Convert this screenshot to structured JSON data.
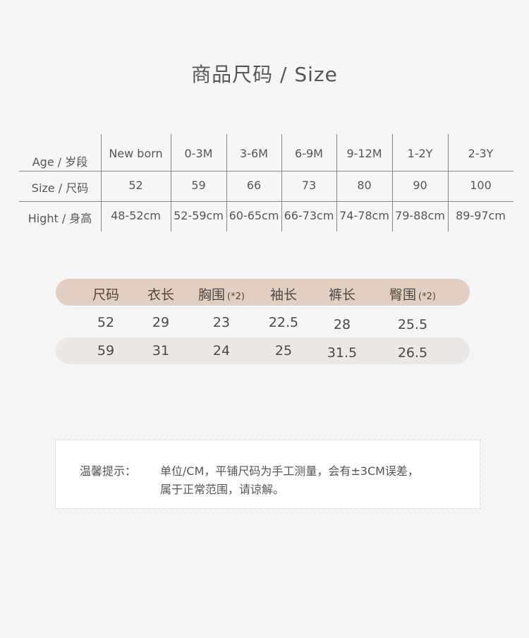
{
  "title": "商品尺码 / Size",
  "size_table": {
    "rows": [
      {
        "label": "Age / 岁段",
        "values": [
          "New born",
          "0-3M",
          "3-6M",
          "6-9M",
          "9-12M",
          "1-2Y",
          "2-3Y"
        ]
      },
      {
        "label": "Size / 尺码",
        "values": [
          "52",
          "59",
          "66",
          "73",
          "80",
          "90",
          "100"
        ]
      },
      {
        "label": "Hight / 身高",
        "values": [
          "48-52cm",
          "52-59cm",
          "60-65cm",
          "66-73cm",
          "74-78cm",
          "79-88cm",
          "89-97cm"
        ]
      }
    ]
  },
  "measure_table": {
    "headers": [
      {
        "text": "尺码",
        "note": ""
      },
      {
        "text": "衣长",
        "note": ""
      },
      {
        "text": "胸围",
        "note": "(*2)"
      },
      {
        "text": "袖长",
        "note": ""
      },
      {
        "text": "裤长",
        "note": ""
      },
      {
        "text": "臀围",
        "note": "(*2)"
      }
    ],
    "rows": [
      [
        "52",
        "29",
        "23",
        "22.5",
        "28",
        "25.5"
      ],
      [
        "59",
        "31",
        "24",
        "25",
        "31.5",
        "26.5"
      ]
    ],
    "header_color": "#e2cfc1",
    "stripe_color": "#ebe8e6"
  },
  "note": {
    "label": "温馨提示：",
    "line1": "单位/CM，平铺尺码为手工测量，会有±3CM误差，",
    "line2": "属于正常范围，请谅解。"
  }
}
